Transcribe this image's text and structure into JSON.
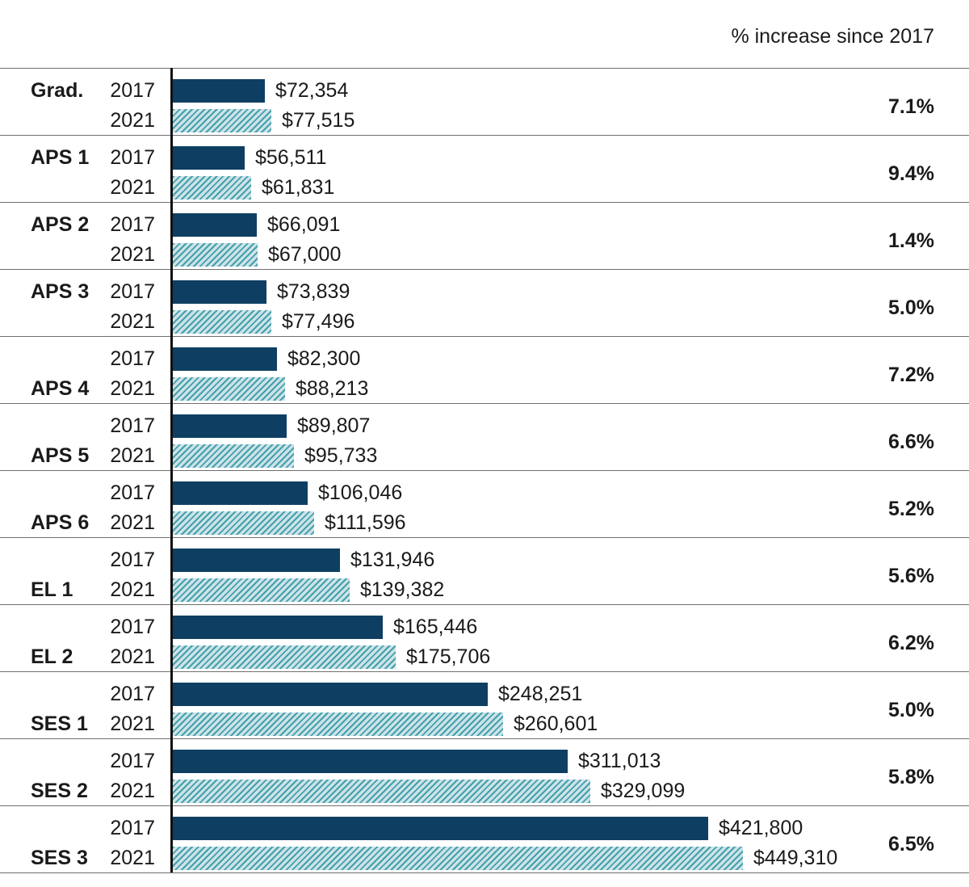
{
  "header": {
    "percent_column_label": "% increase since 2017"
  },
  "chart_data": {
    "type": "bar",
    "orientation": "horizontal",
    "value_unit": "USD",
    "series_names": [
      "2017",
      "2021"
    ],
    "grid": "horizontal row separators, single vertical baseline axis, no tick labels",
    "legend_position": "none (years labeled per row)",
    "colors": {
      "bar_2017": "#0e3f63",
      "bar_2021_background": "#cde3e7",
      "bar_2021_stripe": "#42a0ad",
      "row_line": "#6f6f6f",
      "axis_line": "#111111",
      "text": "#1a1a1a"
    },
    "groups": [
      {
        "label": "Grad.",
        "y2017": {
          "value": 72354,
          "display": "$72,354"
        },
        "y2021": {
          "value": 77515,
          "display": "$77,515"
        },
        "pct_increase": "7.1%",
        "label_row": "top"
      },
      {
        "label": "APS 1",
        "y2017": {
          "value": 56511,
          "display": "$56,511"
        },
        "y2021": {
          "value": 61831,
          "display": "$61,831"
        },
        "pct_increase": "9.4%",
        "label_row": "top"
      },
      {
        "label": "APS 2",
        "y2017": {
          "value": 66091,
          "display": "$66,091"
        },
        "y2021": {
          "value": 67000,
          "display": "$67,000"
        },
        "pct_increase": "1.4%",
        "label_row": "top"
      },
      {
        "label": "APS 3",
        "y2017": {
          "value": 73839,
          "display": "$73,839"
        },
        "y2021": {
          "value": 77496,
          "display": "$77,496"
        },
        "pct_increase": "5.0%",
        "label_row": "top"
      },
      {
        "label": "APS 4",
        "y2017": {
          "value": 82300,
          "display": "$82,300"
        },
        "y2021": {
          "value": 88213,
          "display": "$88,213"
        },
        "pct_increase": "7.2%",
        "label_row": "bottom"
      },
      {
        "label": "APS 5",
        "y2017": {
          "value": 89807,
          "display": "$89,807"
        },
        "y2021": {
          "value": 95733,
          "display": "$95,733"
        },
        "pct_increase": "6.6%",
        "label_row": "bottom"
      },
      {
        "label": "APS 6",
        "y2017": {
          "value": 106046,
          "display": "$106,046"
        },
        "y2021": {
          "value": 111596,
          "display": "$111,596"
        },
        "pct_increase": "5.2%",
        "label_row": "bottom"
      },
      {
        "label": "EL 1",
        "y2017": {
          "value": 131946,
          "display": "$131,946"
        },
        "y2021": {
          "value": 139382,
          "display": "$139,382"
        },
        "pct_increase": "5.6%",
        "label_row": "bottom"
      },
      {
        "label": "EL 2",
        "y2017": {
          "value": 165446,
          "display": "$165,446"
        },
        "y2021": {
          "value": 175706,
          "display": "$175,706"
        },
        "pct_increase": "6.2%",
        "label_row": "bottom"
      },
      {
        "label": "SES 1",
        "y2017": {
          "value": 248251,
          "display": "$248,251"
        },
        "y2021": {
          "value": 260601,
          "display": "$260,601"
        },
        "pct_increase": "5.0%",
        "label_row": "bottom"
      },
      {
        "label": "SES 2",
        "y2017": {
          "value": 311013,
          "display": "$311,013"
        },
        "y2021": {
          "value": 329099,
          "display": "$329,099"
        },
        "pct_increase": "5.8%",
        "label_row": "bottom"
      },
      {
        "label": "SES 3",
        "y2017": {
          "value": 421800,
          "display": "$421,800"
        },
        "y2021": {
          "value": 449310,
          "display": "$449,310"
        },
        "pct_increase": "6.5%",
        "label_row": "bottom"
      }
    ]
  }
}
